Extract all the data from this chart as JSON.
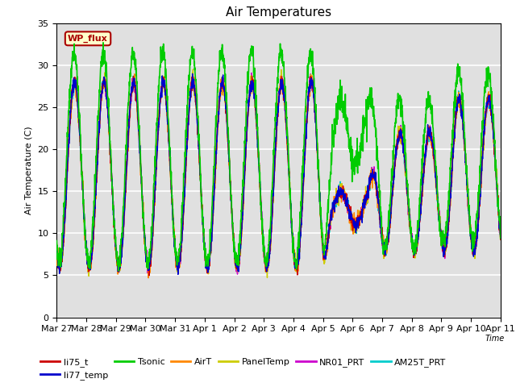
{
  "title": "Air Temperatures",
  "ylabel": "Air Temperature (C)",
  "xlabel": "Time",
  "ylim": [
    0,
    35
  ],
  "background_color": "#ffffff",
  "plot_bg_color": "#e0e0e0",
  "grid_color": "#ffffff",
  "annotation_text": "WP_flux",
  "annotation_bg": "#ffffcc",
  "annotation_border": "#aa0000",
  "annotation_text_color": "#aa0000",
  "series": {
    "li75_t": {
      "color": "#cc0000",
      "lw": 1.0,
      "zorder": 4
    },
    "li77_temp": {
      "color": "#0000cc",
      "lw": 1.0,
      "zorder": 5
    },
    "Tsonic": {
      "color": "#00cc00",
      "lw": 1.2,
      "zorder": 6
    },
    "AirT": {
      "color": "#ff8800",
      "lw": 1.0,
      "zorder": 3
    },
    "PanelTemp": {
      "color": "#cccc00",
      "lw": 1.0,
      "zorder": 2
    },
    "NR01_PRT": {
      "color": "#cc00cc",
      "lw": 1.0,
      "zorder": 2
    },
    "AM25T_PRT": {
      "color": "#00cccc",
      "lw": 1.0,
      "zorder": 1
    }
  },
  "xtick_labels": [
    "Mar 27",
    "Mar 28",
    "Mar 29",
    "Mar 30",
    "Mar 31",
    "Apr 1",
    "Apr 2",
    "Apr 3",
    "Apr 4",
    "Apr 5",
    "Apr 6",
    "Apr 7",
    "Apr 8",
    "Apr 9",
    "Apr 10",
    "Apr 11"
  ],
  "xtick_positions": [
    0,
    1,
    2,
    3,
    4,
    5,
    6,
    7,
    8,
    9,
    10,
    11,
    12,
    13,
    14,
    15
  ],
  "legend_order": [
    "li75_t",
    "li77_temp",
    "Tsonic",
    "AirT",
    "PanelTemp",
    "NR01_PRT",
    "AM25T_PRT"
  ],
  "legend_ncol1": 6,
  "legend_ncol2": 1
}
